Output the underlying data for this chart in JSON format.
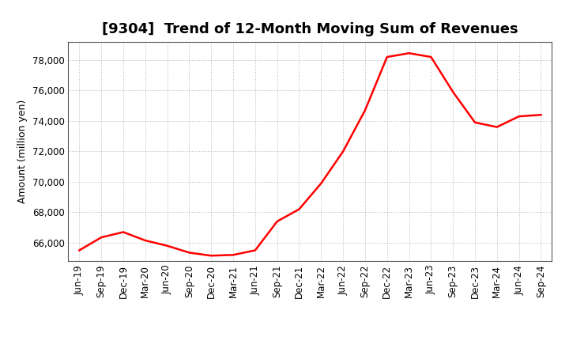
{
  "title": "[9304]  Trend of 12-Month Moving Sum of Revenues",
  "ylabel": "Amount (million yen)",
  "line_color": "#FF0000",
  "line_width": 1.8,
  "background_color": "#FFFFFF",
  "plot_background_color": "#FFFFFF",
  "grid_color": "#999999",
  "x_labels": [
    "Jun-19",
    "Sep-19",
    "Dec-19",
    "Mar-20",
    "Jun-20",
    "Sep-20",
    "Dec-20",
    "Mar-21",
    "Jun-21",
    "Sep-21",
    "Dec-21",
    "Mar-22",
    "Jun-22",
    "Sep-22",
    "Dec-22",
    "Mar-23",
    "Jun-23",
    "Sep-23",
    "Dec-23",
    "Mar-24",
    "Jun-24",
    "Sep-24"
  ],
  "y_values": [
    65500,
    66350,
    66700,
    66150,
    65800,
    65350,
    65150,
    65200,
    65500,
    67400,
    68200,
    69900,
    72000,
    74700,
    78200,
    78450,
    78200,
    75900,
    73900,
    73600,
    74300,
    74400
  ],
  "ylim": [
    64800,
    79200
  ],
  "yticks": [
    66000,
    68000,
    70000,
    72000,
    74000,
    76000,
    78000
  ],
  "title_fontsize": 13,
  "axis_fontsize": 9,
  "tick_fontsize": 8.5
}
